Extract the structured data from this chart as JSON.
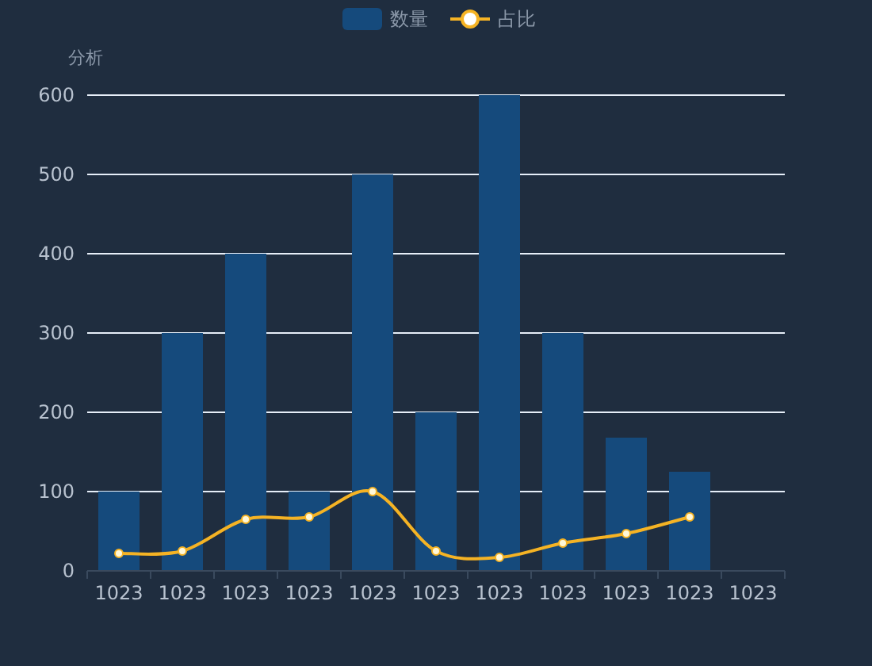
{
  "chart_data": {
    "type": "bar",
    "categories": [
      "1023",
      "1023",
      "1023",
      "1023",
      "1023",
      "1023",
      "1023",
      "1023",
      "1023",
      "1023",
      "1023"
    ],
    "ylabel": "分析",
    "ylim": [
      0,
      600
    ],
    "yticks": [
      0,
      100,
      200,
      300,
      400,
      500,
      600
    ],
    "grid": "y",
    "legend": "top",
    "marker": "circle",
    "series": [
      {
        "name": "数量",
        "color": "#154a7c",
        "values": [
          100,
          300,
          400,
          100,
          500,
          200,
          600,
          300,
          168,
          125,
          null
        ]
      },
      {
        "name": "占比",
        "type": "line",
        "color": "#f5b324",
        "values": [
          22,
          25,
          65,
          68,
          100,
          25,
          17,
          35,
          47,
          68,
          null
        ]
      }
    ]
  }
}
